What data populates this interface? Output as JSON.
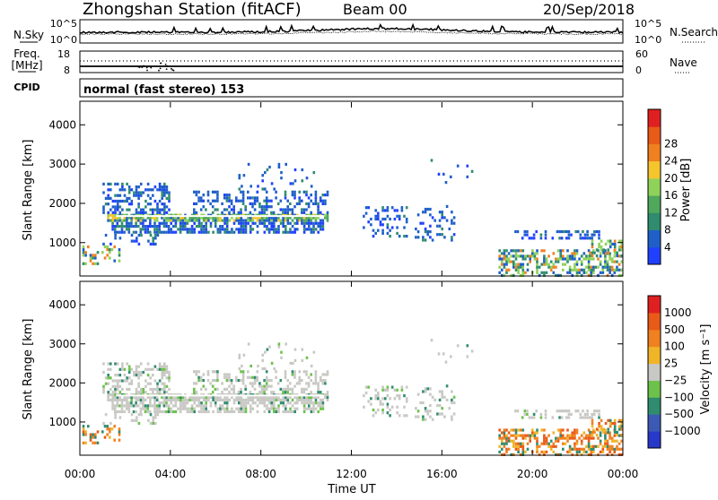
{
  "header": {
    "station": "Zhongshan Station (fitACF)",
    "beam": "Beam 00",
    "date": "20/Sep/2018"
  },
  "noise_panel": {
    "left_label": "N.Sky",
    "right_label": "N.Search",
    "left_ticks": [
      "10^5",
      "10^0"
    ],
    "right_ticks": [
      "10^5",
      "10^0"
    ]
  },
  "freq_panel": {
    "left_label_1": "Freq.",
    "left_label_2": "[MHz]",
    "left_ticks": [
      "18",
      "8"
    ],
    "right_label": "Nave",
    "right_ticks": [
      "60",
      "0"
    ]
  },
  "cpid_panel": {
    "label": "CPID",
    "text": "normal (fast stereo) 153"
  },
  "chart_data": [
    {
      "type": "heatmap",
      "name": "power",
      "ylabel": "Slant Range [km]",
      "xlabel": "Time UT",
      "x_ticks": [
        "00:00",
        "04:00",
        "08:00",
        "12:00",
        "16:00",
        "20:00",
        "00:00"
      ],
      "y_ticks": [
        1000,
        2000,
        3000,
        4000
      ],
      "ylim": [
        150,
        4600
      ],
      "colorbar": {
        "label": "Power [dB]",
        "ticks": [
          4,
          8,
          12,
          16,
          20,
          24,
          28
        ],
        "colors": [
          "#2040ff",
          "#1f5fc8",
          "#2f8c6e",
          "#4fa85c",
          "#8fd25a",
          "#f5c52e",
          "#f08020",
          "#e85a18",
          "#e02020"
        ]
      }
    },
    {
      "type": "heatmap",
      "name": "velocity",
      "ylabel": "Slant Range [km]",
      "xlabel": "Time UT",
      "x_ticks": [
        "00:00",
        "04:00",
        "08:00",
        "12:00",
        "16:00",
        "20:00",
        "00:00"
      ],
      "y_ticks": [
        1000,
        2000,
        3000,
        4000
      ],
      "ylim": [
        150,
        4600
      ],
      "colorbar": {
        "label": "Velocity [m s⁻¹]",
        "ticks": [
          "1000",
          "500",
          "100",
          "25",
          "−25",
          "−100",
          "−500",
          "−1000"
        ],
        "colors": [
          "#2838c8",
          "#3c5ab4",
          "#2f8c6e",
          "#6cc24a",
          "#c8c8c4",
          "#f0b428",
          "#f08020",
          "#e85a18",
          "#e02020"
        ]
      }
    }
  ],
  "colors": {
    "ground_gray": "#c8c8c4",
    "axis": "#000000"
  }
}
